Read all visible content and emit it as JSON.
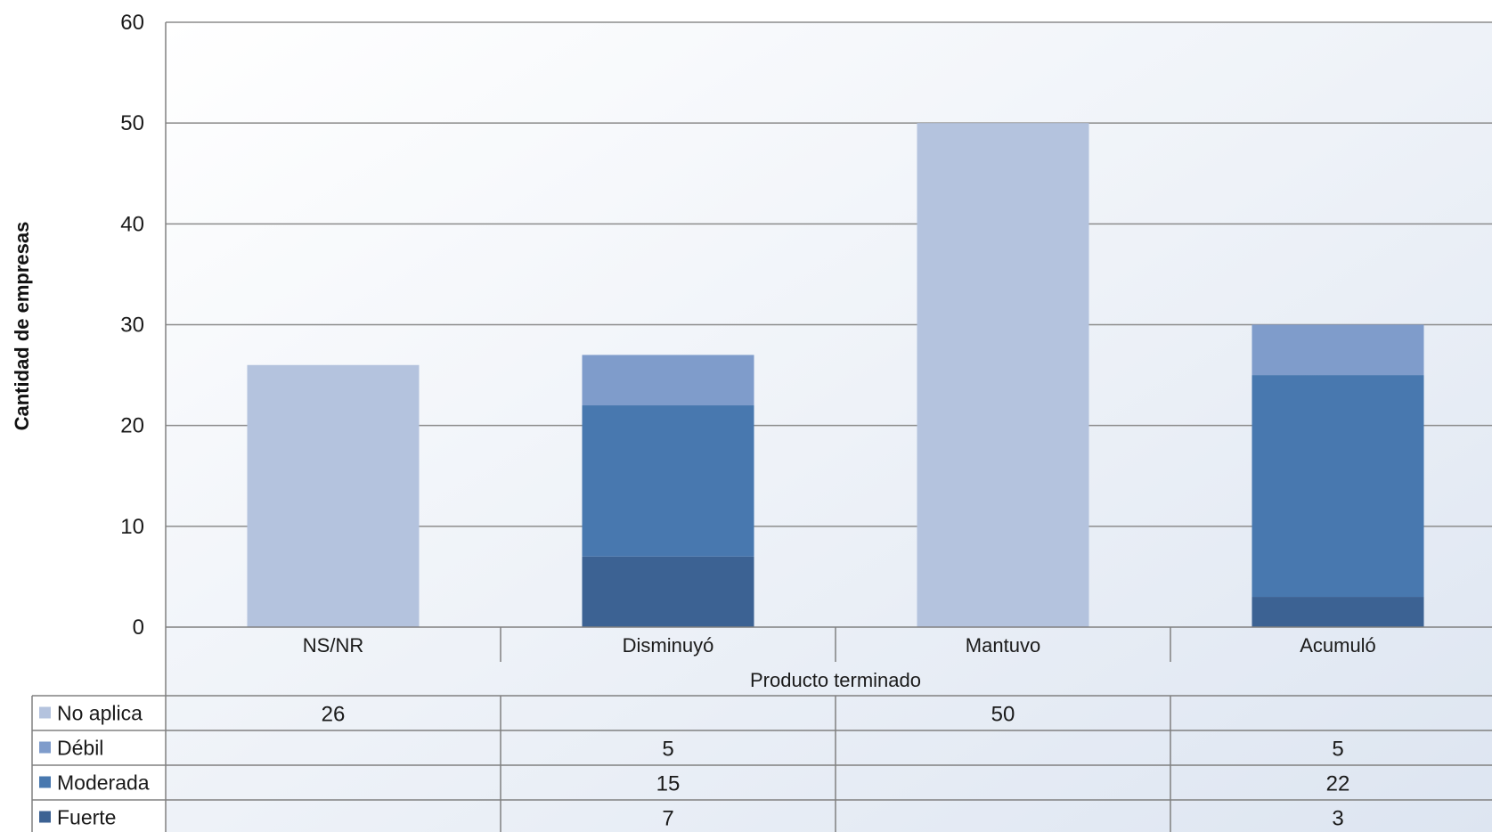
{
  "chart_data": {
    "type": "bar",
    "stacked": true,
    "categories": [
      "NS/NR",
      "Disminuyó",
      "Mantuvo",
      "Acumuló"
    ],
    "xlabel": "Producto terminado",
    "ylabel": "Cantidad de empresas",
    "ylim": [
      0,
      60
    ],
    "yticks": [
      0,
      10,
      20,
      30,
      40,
      50,
      60
    ],
    "grid": true,
    "legend_placement": "data-table-left",
    "series": [
      {
        "name": "Fuerte",
        "color": "#3c6293",
        "values": [
          null,
          7,
          null,
          3
        ]
      },
      {
        "name": "Moderada",
        "color": "#4878af",
        "values": [
          null,
          15,
          null,
          22
        ]
      },
      {
        "name": "Débil",
        "color": "#7f9ccb",
        "values": [
          null,
          5,
          null,
          5
        ]
      },
      {
        "name": "No aplica",
        "color": "#b4c3de",
        "values": [
          26,
          null,
          50,
          null
        ]
      }
    ],
    "table_rows": [
      {
        "name": "No aplica",
        "color": "#b4c3de",
        "values": [
          "26",
          "",
          "50",
          ""
        ]
      },
      {
        "name": "Débil",
        "color": "#7f9ccb",
        "values": [
          "",
          "5",
          "",
          "5"
        ]
      },
      {
        "name": "Moderada",
        "color": "#4878af",
        "values": [
          "",
          "15",
          "",
          "22"
        ]
      },
      {
        "name": "Fuerte",
        "color": "#3c6293",
        "values": [
          "",
          "7",
          "",
          "3"
        ]
      }
    ]
  }
}
